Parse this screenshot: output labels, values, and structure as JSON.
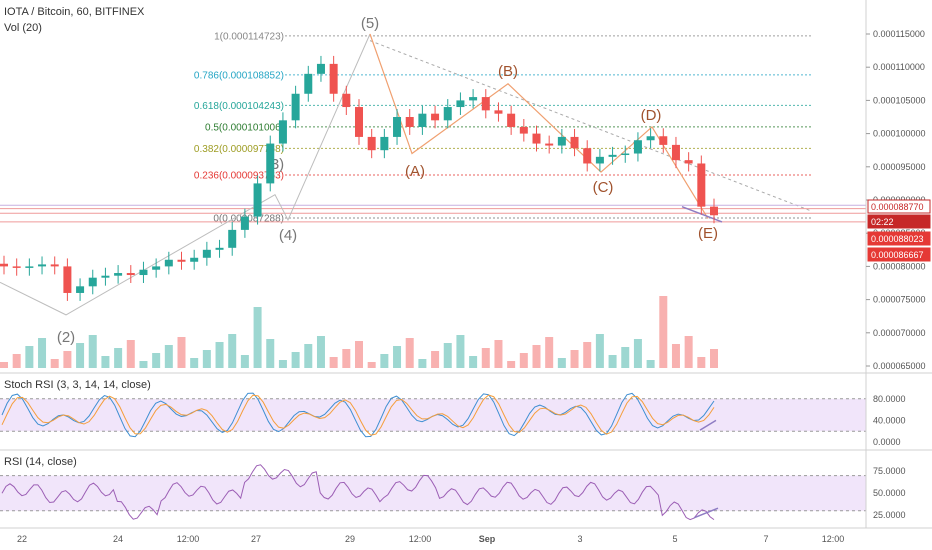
{
  "header": {
    "symbol": "IOTA / Bitcoin, 60, BITFINEX",
    "volume_label": "Vol (20)"
  },
  "chart_data": [
    {
      "type": "candlestick",
      "title": "IOTA / Bitcoin, 60, BITFINEX",
      "price_axis": [
        "0.000115000",
        "0.000110000",
        "0.000105000",
        "0.000100000",
        "0.000095000",
        "0.000090000",
        "0.000085000",
        "0.000080000",
        "0.000075000",
        "0.000070000",
        "0.000065000"
      ],
      "ylim": [
        6.45e-05,
        0.000118
      ],
      "time_axis": [
        "22",
        "24",
        "12:00",
        "27",
        "29",
        "12:00",
        "Sep",
        "3",
        "5",
        "7",
        "12:00"
      ],
      "price_tags": [
        {
          "label": "0.000088770",
          "bg": "#ffffff",
          "fg": "#c62828",
          "border": "#c62828"
        },
        {
          "label": "02:22",
          "bg": "#c62828",
          "fg": "#ffffff"
        },
        {
          "label": "0.000088023",
          "bg": "#e53935",
          "fg": "#ffffff"
        },
        {
          "label": "0.000086667",
          "bg": "#e53935",
          "fg": "#ffffff"
        }
      ],
      "fibonacci": [
        {
          "ratio": "1",
          "value": "0.000114723",
          "label": "1(0.000114723)",
          "color": "#888888"
        },
        {
          "ratio": "0.786",
          "value": "0.000108852",
          "label": "0.786(0.000108852)",
          "color": "#26a6c5"
        },
        {
          "ratio": "0.618",
          "value": "0.000104243",
          "label": "0.618(0.000104243)",
          "color": "#26a69a"
        },
        {
          "ratio": "0.5",
          "value": "0.000101006",
          "label": "0.5(0.000101006)",
          "color": "#2e7d32"
        },
        {
          "ratio": "0.382",
          "value": "0.000097768",
          "label": "0.382(0.000097768)",
          "color": "#9e9d24"
        },
        {
          "ratio": "0.236",
          "value": "0.000093763",
          "label": "0.236(0.000093763)",
          "color": "#e53935"
        },
        {
          "ratio": "0",
          "value": "0.000087288",
          "label": "0(0.000087288)",
          "color": "#777777"
        }
      ],
      "wave_labels": [
        "(2)",
        "(3)",
        "(4)",
        "(5)",
        "(A)",
        "(B)",
        "(C)",
        "(D)",
        "(E)"
      ],
      "candles_close_estimate": [
        8e-05,
        7.98e-05,
        8e-05,
        8.03e-05,
        8e-05,
        7.6e-05,
        7.7e-05,
        7.83e-05,
        7.86e-05,
        7.9e-05,
        7.87e-05,
        7.95e-05,
        8e-05,
        8.1e-05,
        8.07e-05,
        8.13e-05,
        8.25e-05,
        8.28e-05,
        8.55e-05,
        8.75e-05,
        9.25e-05,
        9.85e-05,
        0.000102,
        0.000106,
        0.000109,
        0.0001105,
        0.000106,
        0.000104,
        9.95e-05,
        9.75e-05,
        9.95e-05,
        0.0001025,
        0.000101,
        0.000103,
        0.000102,
        0.000104,
        0.000105,
        0.0001055,
        0.0001035,
        0.000103,
        0.000101,
        0.0001,
        9.85e-05,
        9.82e-05,
        9.95e-05,
        9.78e-05,
        9.55e-05,
        9.65e-05,
        9.68e-05,
        9.7e-05,
        9.9e-05,
        9.96e-05,
        9.83e-05,
        9.6e-05,
        9.55e-05,
        8.9e-05,
        8.77e-05
      ]
    },
    {
      "type": "line",
      "title": "Stoch RSI (3, 3, 14, 14, close)",
      "y_axis": [
        "80.0000",
        "40.0000",
        "0.0000"
      ],
      "ylim": [
        0,
        100
      ],
      "band": [
        20,
        80
      ]
    },
    {
      "type": "line",
      "title": "RSI (14, close)",
      "y_axis": [
        "75.0000",
        "50.0000",
        "25.0000"
      ],
      "ylim": [
        15,
        90
      ],
      "band": [
        30,
        70
      ]
    }
  ],
  "colors": {
    "up": "#26a69a",
    "down": "#ef5350",
    "wave": "#f0a070",
    "rsi": "#9c5fb5",
    "band": "#e7d4f7",
    "trend": "#aaaaaa"
  }
}
